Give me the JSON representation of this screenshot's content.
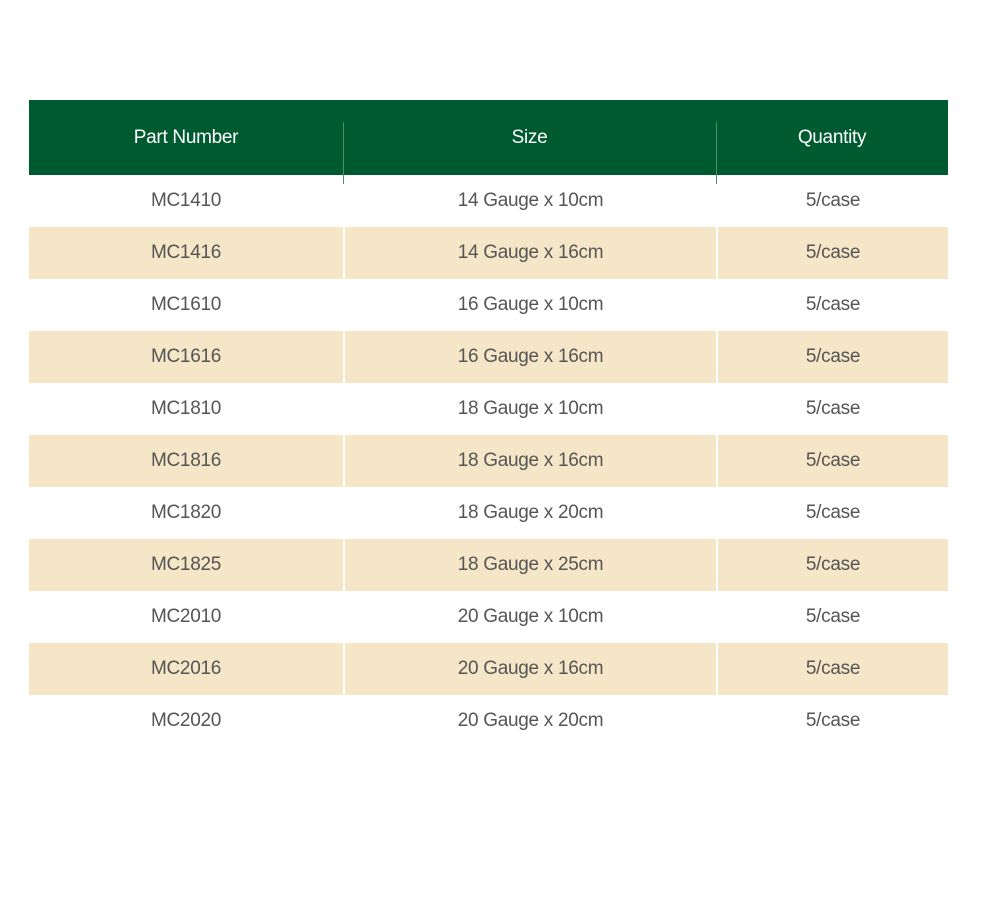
{
  "colors": {
    "header_bg": "#005a30",
    "alt_row_bg": "#f5e6c8",
    "text": "#555555"
  },
  "table": {
    "headers": [
      "Part Number",
      "Size",
      "Quantity"
    ],
    "rows": [
      [
        "MC1410",
        "14 Gauge x 10cm",
        "5/case"
      ],
      [
        "MC1416",
        "14 Gauge x 16cm",
        "5/case"
      ],
      [
        "MC1610",
        "16 Gauge x 10cm",
        "5/case"
      ],
      [
        "MC1616",
        "16 Gauge x 16cm",
        "5/case"
      ],
      [
        "MC1810",
        "18 Gauge x 10cm",
        "5/case"
      ],
      [
        "MC1816",
        "18 Gauge x 16cm",
        "5/case"
      ],
      [
        "MC1820",
        "18 Gauge x 20cm",
        "5/case"
      ],
      [
        "MC1825",
        "18 Gauge x 25cm",
        "5/case"
      ],
      [
        "MC2010",
        "20 Gauge x 10cm",
        "5/case"
      ],
      [
        "MC2016",
        "20 Gauge x 16cm",
        "5/case"
      ],
      [
        "MC2020",
        "20 Gauge x 20cm",
        "5/case"
      ]
    ]
  }
}
